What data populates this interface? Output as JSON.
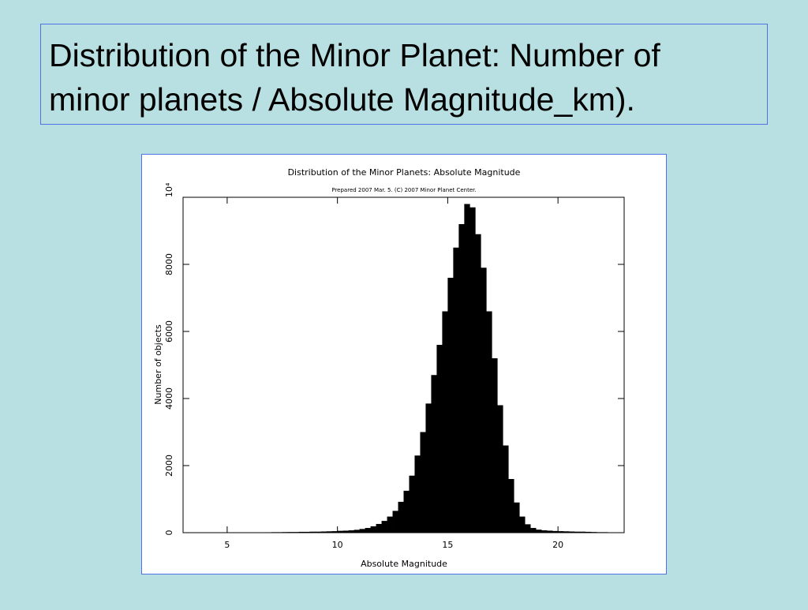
{
  "slide": {
    "title_lines": [
      "Distribution of the Minor Planet: Number of",
      "minor planets  / Absolute Magnitude_km)."
    ]
  },
  "chart_data": {
    "type": "histogram",
    "title": "Distribution of the Minor Planets: Absolute Magnitude",
    "subtitle": "Prepared 2007 Mar. 5.  (C) 2007 Minor Planet Center.",
    "x_label": "Absolute Magnitude",
    "y_label": "Number of objects",
    "color": "#000000",
    "bins": [
      3,
      3.25,
      3.5,
      3.75,
      4,
      4.25,
      4.5,
      4.75,
      5,
      5.25,
      5.5,
      5.75,
      6,
      6.25,
      6.5,
      6.75,
      7,
      7.25,
      7.5,
      7.75,
      8,
      8.25,
      8.5,
      8.75,
      9,
      9.25,
      9.5,
      9.75,
      10,
      10.25,
      10.5,
      10.75,
      11,
      11.25,
      11.5,
      11.75,
      12,
      12.25,
      12.5,
      12.75,
      13,
      13.25,
      13.5,
      13.75,
      14,
      14.25,
      14.5,
      14.75,
      15,
      15.25,
      15.5,
      15.75,
      16,
      16.25,
      16.5,
      16.75,
      17,
      17.25,
      17.5,
      17.75,
      18,
      18.25,
      18.5,
      18.75,
      19,
      19.25,
      19.5,
      19.75,
      20,
      20.25,
      20.5,
      20.75,
      21,
      21.25,
      21.5,
      21.75,
      22,
      22.25,
      22.5,
      22.75,
      23
    ],
    "counts": [
      0,
      0,
      0,
      0,
      0,
      0,
      0,
      0,
      0,
      0,
      5,
      8,
      6,
      8,
      10,
      12,
      15,
      15,
      18,
      20,
      20,
      25,
      25,
      30,
      30,
      35,
      40,
      45,
      55,
      60,
      70,
      85,
      110,
      140,
      190,
      260,
      350,
      480,
      650,
      920,
      1250,
      1700,
      2300,
      3000,
      3850,
      4700,
      5600,
      6600,
      7600,
      8500,
      9200,
      9800,
      9700,
      8900,
      7900,
      6600,
      5200,
      3800,
      2600,
      1600,
      900,
      480,
      250,
      140,
      90,
      70,
      60,
      50,
      45,
      40,
      35,
      30,
      30,
      25,
      20,
      15,
      15,
      10,
      8,
      5
    ],
    "xlim": [
      3,
      23
    ],
    "xticks": [
      5,
      10,
      15,
      20
    ],
    "ylim": [
      0,
      10000
    ],
    "yticks": [
      0,
      2000,
      4000,
      6000,
      8000,
      {
        "value": 10000,
        "label": "10⁴"
      }
    ]
  }
}
